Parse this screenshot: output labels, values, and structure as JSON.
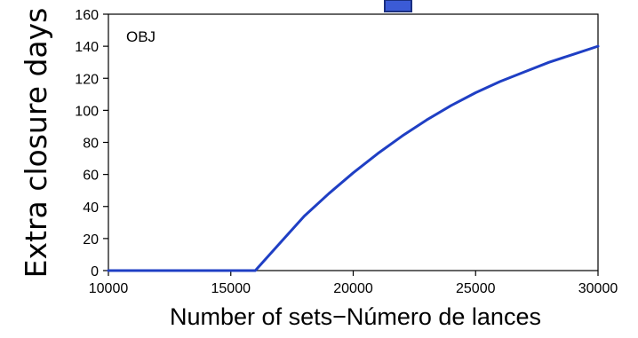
{
  "chart_data": {
    "type": "line",
    "title": "",
    "panel_label": "OBJ",
    "xlabel": "Number of sets−Número de lances",
    "ylabel": "Extra closure days",
    "xlim": [
      10000,
      30000
    ],
    "ylim": [
      0,
      160
    ],
    "x_ticks": [
      10000,
      15000,
      20000,
      25000,
      30000
    ],
    "x_tick_labels": [
      "10000",
      "15000",
      "20000",
      "25000",
      "30000"
    ],
    "y_ticks": [
      0,
      20,
      40,
      60,
      80,
      100,
      120,
      140,
      160
    ],
    "y_tick_labels": [
      "0",
      "20",
      "40",
      "60",
      "80",
      "100",
      "120",
      "140",
      "160"
    ],
    "grid": false,
    "series": [
      {
        "color": "#1f3fc4",
        "x": [
          10000,
          12000,
          14000,
          16000,
          17000,
          18000,
          19000,
          20000,
          21000,
          22000,
          23000,
          24000,
          25000,
          26000,
          27000,
          28000,
          29000,
          30000
        ],
        "y": [
          0,
          0,
          0,
          0,
          17,
          34,
          48,
          61,
          73,
          84,
          94,
          103,
          111,
          118,
          124,
          130,
          135,
          140
        ]
      }
    ]
  },
  "colors": {
    "line": "#1f3fc4",
    "axis": "#000000",
    "top_tab_fill": "#3b5bd6",
    "top_tab_border": "#1a2f80"
  }
}
